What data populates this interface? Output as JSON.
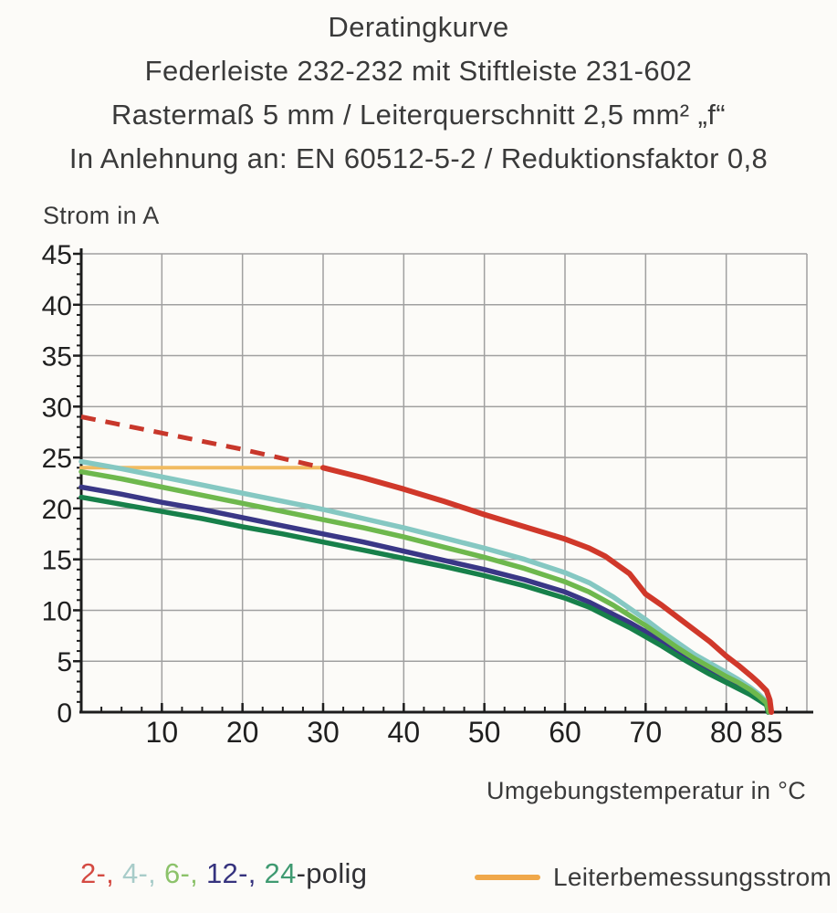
{
  "page": {
    "background": "#fcfbf8"
  },
  "header": {
    "title": "Deratingkurve",
    "subtitle_lines": [
      "Federleiste 232-232 mit Stiftleiste 231-602",
      "Rastermaß 5 mm / Leiterquerschnitt 2,5 mm² „f“",
      "In Anlehnung an: EN 60512-5-2 / Reduktionsfaktor 0,8"
    ]
  },
  "chart_data": {
    "type": "line",
    "title": "Deratingkurve",
    "ylabel": "Strom in A",
    "xlabel": "Umgebungstemperatur in °C",
    "xlim": [
      0,
      90
    ],
    "ylim": [
      0,
      45
    ],
    "grid": true,
    "grid_color": "#a0a0a0",
    "axis_color": "#1d1d1d",
    "legend_position": "bottom",
    "x_axis": {
      "gridlines": [
        10,
        20,
        30,
        40,
        50,
        60,
        70,
        80,
        90
      ],
      "major_ticks": [
        10,
        20,
        30,
        40,
        50,
        60,
        70,
        80,
        85
      ],
      "minor_tick_step": 2.5,
      "tick_labels": [
        {
          "v": 10,
          "t": "10"
        },
        {
          "v": 20,
          "t": "20"
        },
        {
          "v": 30,
          "t": "30"
        },
        {
          "v": 40,
          "t": "40"
        },
        {
          "v": 50,
          "t": "50"
        },
        {
          "v": 60,
          "t": "60"
        },
        {
          "v": 70,
          "t": "70"
        },
        {
          "v": 80,
          "t": "80"
        },
        {
          "v": 85,
          "t": "85"
        }
      ]
    },
    "y_axis": {
      "gridlines": [
        5,
        10,
        15,
        20,
        25,
        30,
        35,
        40,
        45
      ],
      "major_ticks": [
        5,
        10,
        15,
        20,
        25,
        30,
        35,
        40,
        45
      ],
      "minor_tick_step": 1,
      "tick_labels": [
        {
          "v": 0,
          "t": "0"
        },
        {
          "v": 5,
          "t": "5"
        },
        {
          "v": 10,
          "t": "10"
        },
        {
          "v": 15,
          "t": "15"
        },
        {
          "v": 20,
          "t": "20"
        },
        {
          "v": 25,
          "t": "25"
        },
        {
          "v": 30,
          "t": "30"
        },
        {
          "v": 35,
          "t": "35"
        },
        {
          "v": 40,
          "t": "40"
        },
        {
          "v": 45,
          "t": "45"
        }
      ]
    },
    "series": [
      {
        "name": "Leiterbemessungsstrom",
        "color": "#f1bb61",
        "width": 4,
        "dash": false,
        "points": [
          [
            0,
            24
          ],
          [
            30,
            24
          ]
        ]
      },
      {
        "name": "2-polig-gestrichelt",
        "color": "#c8372b",
        "width": 5,
        "dash": true,
        "points": [
          [
            0,
            29
          ],
          [
            5,
            28.2
          ],
          [
            10,
            27.4
          ],
          [
            15,
            26.6
          ],
          [
            20,
            25.8
          ],
          [
            25,
            24.9
          ],
          [
            30,
            24
          ]
        ]
      },
      {
        "name": "4-polig",
        "color": "#85c8c2",
        "width": 5.5,
        "dash": false,
        "points": [
          [
            0,
            24.6
          ],
          [
            5,
            23.9
          ],
          [
            10,
            23.1
          ],
          [
            15,
            22.3
          ],
          [
            20,
            21.5
          ],
          [
            25,
            20.7
          ],
          [
            30,
            19.9
          ],
          [
            35,
            19
          ],
          [
            40,
            18.1
          ],
          [
            45,
            17.1
          ],
          [
            50,
            16.1
          ],
          [
            55,
            15
          ],
          [
            60,
            13.7
          ],
          [
            63,
            12.7
          ],
          [
            66,
            11.3
          ],
          [
            68,
            10.2
          ],
          [
            70,
            9.1
          ],
          [
            72,
            7.9
          ],
          [
            74,
            6.8
          ],
          [
            76,
            5.7
          ],
          [
            78,
            4.8
          ],
          [
            80,
            3.9
          ],
          [
            81.5,
            3.2
          ],
          [
            83,
            2.4
          ],
          [
            84,
            1.8
          ],
          [
            85,
            1
          ],
          [
            85.3,
            0
          ]
        ]
      },
      {
        "name": "12-polig",
        "color": "#3a3786",
        "width": 5.5,
        "dash": false,
        "points": [
          [
            0,
            22.1
          ],
          [
            5,
            21.4
          ],
          [
            10,
            20.6
          ],
          [
            15,
            19.9
          ],
          [
            20,
            19.1
          ],
          [
            25,
            18.3
          ],
          [
            30,
            17.5
          ],
          [
            35,
            16.7
          ],
          [
            40,
            15.8
          ],
          [
            45,
            14.9
          ],
          [
            50,
            14
          ],
          [
            55,
            13
          ],
          [
            60,
            11.8
          ],
          [
            63,
            10.8
          ],
          [
            66,
            9.6
          ],
          [
            68,
            8.8
          ],
          [
            70,
            7.9
          ],
          [
            72,
            6.9
          ],
          [
            74,
            5.9
          ],
          [
            76,
            4.9
          ],
          [
            78,
            4
          ],
          [
            80,
            3.1
          ],
          [
            81.5,
            2.5
          ],
          [
            83,
            1.9
          ],
          [
            84,
            1.4
          ],
          [
            85,
            0.8
          ],
          [
            85.2,
            0
          ]
        ]
      },
      {
        "name": "24-polig",
        "color": "#17804a",
        "width": 5.5,
        "dash": false,
        "points": [
          [
            0,
            21.1
          ],
          [
            5,
            20.4
          ],
          [
            10,
            19.7
          ],
          [
            15,
            19
          ],
          [
            20,
            18.2
          ],
          [
            25,
            17.5
          ],
          [
            30,
            16.7
          ],
          [
            35,
            15.9
          ],
          [
            40,
            15.1
          ],
          [
            45,
            14.3
          ],
          [
            50,
            13.4
          ],
          [
            55,
            12.4
          ],
          [
            60,
            11.2
          ],
          [
            63,
            10.3
          ],
          [
            66,
            9.1
          ],
          [
            68,
            8.3
          ],
          [
            70,
            7.4
          ],
          [
            72,
            6.5
          ],
          [
            74,
            5.5
          ],
          [
            76,
            4.6
          ],
          [
            78,
            3.7
          ],
          [
            80,
            2.9
          ],
          [
            81.5,
            2.3
          ],
          [
            83,
            1.7
          ],
          [
            84,
            1.2
          ],
          [
            85,
            0.7
          ],
          [
            85.2,
            0
          ]
        ]
      },
      {
        "name": "6-polig",
        "color": "#6eb84d",
        "width": 5.5,
        "dash": false,
        "points": [
          [
            0,
            23.6
          ],
          [
            5,
            22.9
          ],
          [
            10,
            22.1
          ],
          [
            15,
            21.3
          ],
          [
            20,
            20.5
          ],
          [
            25,
            19.7
          ],
          [
            30,
            18.9
          ],
          [
            35,
            18.1
          ],
          [
            40,
            17.2
          ],
          [
            45,
            16.2
          ],
          [
            50,
            15.2
          ],
          [
            55,
            14.1
          ],
          [
            60,
            12.8
          ],
          [
            63,
            11.8
          ],
          [
            66,
            10.5
          ],
          [
            68,
            9.5
          ],
          [
            70,
            8.5
          ],
          [
            72,
            7.4
          ],
          [
            74,
            6.3
          ],
          [
            76,
            5.3
          ],
          [
            78,
            4.4
          ],
          [
            80,
            3.5
          ],
          [
            81.5,
            2.9
          ],
          [
            83,
            2.2
          ],
          [
            84,
            1.6
          ],
          [
            85,
            0.9
          ],
          [
            85.3,
            0
          ]
        ]
      },
      {
        "name": "2-polig",
        "color": "#d0382a",
        "width": 6,
        "dash": false,
        "points": [
          [
            30,
            24
          ],
          [
            35,
            23
          ],
          [
            40,
            21.9
          ],
          [
            45,
            20.7
          ],
          [
            50,
            19.4
          ],
          [
            55,
            18.2
          ],
          [
            60,
            17
          ],
          [
            63,
            16.1
          ],
          [
            65,
            15.3
          ],
          [
            68,
            13.6
          ],
          [
            70,
            11.6
          ],
          [
            72,
            10.5
          ],
          [
            74,
            9.3
          ],
          [
            76,
            8.1
          ],
          [
            78,
            6.9
          ],
          [
            80,
            5.5
          ],
          [
            81.5,
            4.6
          ],
          [
            83,
            3.6
          ],
          [
            84,
            2.9
          ],
          [
            85,
            2.1
          ],
          [
            85.4,
            1.2
          ],
          [
            85.6,
            0
          ]
        ]
      }
    ]
  },
  "legend": {
    "poles": {
      "items": [
        {
          "label": "2-, ",
          "color": "#d44a42"
        },
        {
          "label": "4-, ",
          "color": "#a8ccc9"
        },
        {
          "label": "6-, ",
          "color": "#8cc26a"
        },
        {
          "label": "12-, ",
          "color": "#36337e"
        },
        {
          "label": "24",
          "color": "#3f9a71"
        },
        {
          "label": "-polig",
          "color": "#303034"
        }
      ]
    },
    "rated_current": {
      "label": "Leiterbemessungsstrom",
      "color": "#3b3b3b",
      "line_color": "#f0a84a"
    }
  }
}
